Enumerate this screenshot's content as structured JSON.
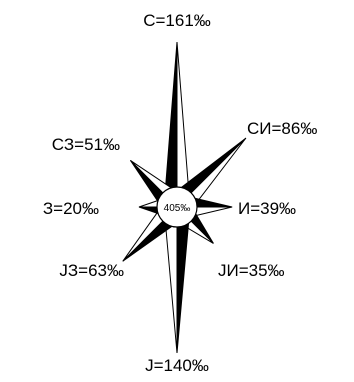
{
  "chart_data": {
    "type": "wind-rose",
    "unit": "‰",
    "center_value": 405,
    "center_label": "405‰",
    "directions": [
      {
        "key": "N",
        "label": "С=161‰",
        "value": 161
      },
      {
        "key": "NE",
        "label": "СИ=86‰",
        "value": 86
      },
      {
        "key": "E",
        "label": "И=39‰",
        "value": 39
      },
      {
        "key": "SE",
        "label": "JИ=35‰",
        "value": 35
      },
      {
        "key": "S",
        "label": "J=140‰",
        "value": 140
      },
      {
        "key": "SW",
        "label": "JЗ=63‰",
        "value": 63
      },
      {
        "key": "W",
        "label": "З=20‰",
        "value": 20
      },
      {
        "key": "NW",
        "label": "СЗ=51‰",
        "value": 51
      }
    ]
  },
  "colors": {
    "fill_dark": "#000000",
    "fill_light": "#ffffff",
    "stroke": "#000000"
  }
}
